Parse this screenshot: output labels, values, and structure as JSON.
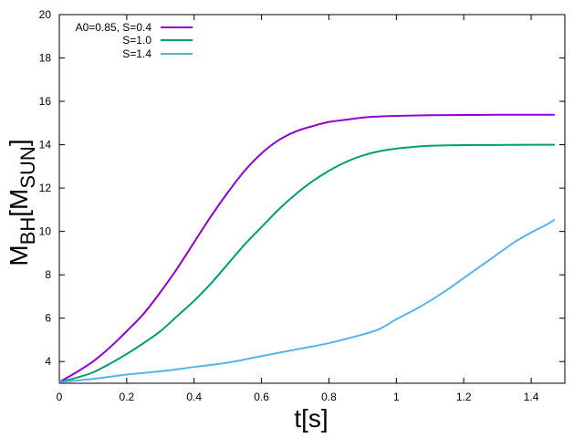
{
  "chart_data": {
    "type": "line",
    "xlabel": "t[s]",
    "ylabel": {
      "main": "M",
      "sub1": "BH",
      "mid": "[M",
      "sub2": "SUN",
      "end": "]"
    },
    "xlim": [
      0,
      1.5
    ],
    "ylim": [
      3,
      20
    ],
    "x_ticks": [
      0,
      0.2,
      0.4,
      0.6,
      0.8,
      1,
      1.2,
      1.4
    ],
    "x_tick_labels": [
      "0",
      "0.2",
      "0.4",
      "0.6",
      "0.8",
      "1",
      "1.2",
      "1.4"
    ],
    "y_ticks": [
      4,
      6,
      8,
      10,
      12,
      14,
      16,
      18,
      20
    ],
    "y_tick_labels": [
      "4",
      "6",
      "8",
      "10",
      "12",
      "14",
      "16",
      "18",
      "20"
    ],
    "grid": false,
    "legend_position": "top-left",
    "series": [
      {
        "name": "A0=0.85, S=0.4",
        "color": "#9400d3",
        "x": [
          0,
          0.05,
          0.1,
          0.15,
          0.2,
          0.25,
          0.3,
          0.35,
          0.4,
          0.45,
          0.5,
          0.55,
          0.6,
          0.65,
          0.7,
          0.75,
          0.8,
          0.85,
          0.9,
          0.95,
          1.0,
          1.1,
          1.2,
          1.3,
          1.4,
          1.47
        ],
        "y": [
          3.05,
          3.5,
          4.0,
          4.65,
          5.4,
          6.2,
          7.2,
          8.3,
          9.5,
          10.7,
          11.8,
          12.8,
          13.6,
          14.2,
          14.6,
          14.85,
          15.05,
          15.15,
          15.25,
          15.3,
          15.33,
          15.36,
          15.37,
          15.38,
          15.38,
          15.38
        ]
      },
      {
        "name": "S=1.0",
        "color": "#009e73",
        "x": [
          0,
          0.05,
          0.1,
          0.15,
          0.2,
          0.25,
          0.3,
          0.35,
          0.4,
          0.45,
          0.5,
          0.55,
          0.6,
          0.65,
          0.7,
          0.75,
          0.8,
          0.85,
          0.9,
          0.95,
          1.0,
          1.05,
          1.1,
          1.2,
          1.3,
          1.4,
          1.47
        ],
        "y": [
          3.05,
          3.25,
          3.5,
          3.9,
          4.35,
          4.85,
          5.4,
          6.1,
          6.8,
          7.6,
          8.5,
          9.4,
          10.2,
          11.0,
          11.7,
          12.3,
          12.8,
          13.2,
          13.5,
          13.7,
          13.82,
          13.9,
          13.95,
          13.98,
          13.99,
          14.0,
          14.0
        ]
      },
      {
        "name": "S=1.4",
        "color": "#56b4e9",
        "x": [
          0,
          0.1,
          0.2,
          0.3,
          0.4,
          0.5,
          0.6,
          0.7,
          0.8,
          0.9,
          0.95,
          1.0,
          1.05,
          1.1,
          1.15,
          1.2,
          1.25,
          1.3,
          1.35,
          1.4,
          1.45,
          1.47
        ],
        "y": [
          3.05,
          3.2,
          3.4,
          3.55,
          3.75,
          3.95,
          4.25,
          4.55,
          4.85,
          5.25,
          5.5,
          5.95,
          6.35,
          6.8,
          7.3,
          7.85,
          8.4,
          8.95,
          9.5,
          9.95,
          10.35,
          10.55
        ]
      }
    ]
  }
}
